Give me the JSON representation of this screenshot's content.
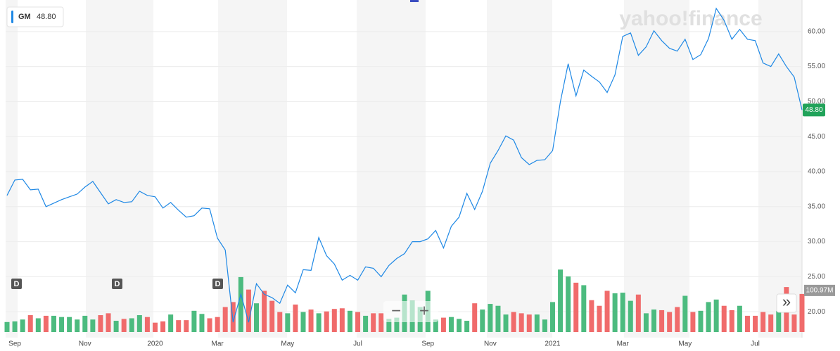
{
  "legend_value": "48.80",
  "watermark": "yahoo!finance",
  "dividends": [
    "D",
    "D",
    "D"
  ],
  "controls": [
    "−",
    "+",
    "»"
  ],
  "chart_data": {
    "type": "line",
    "categories": [
      null,
      "Sep",
      null,
      null,
      null,
      null,
      null,
      null,
      null,
      null,
      "Nov",
      null,
      null,
      null,
      null,
      null,
      null,
      null,
      null,
      "2020",
      null,
      null,
      null,
      null,
      null,
      null,
      null,
      "Mar",
      null,
      null,
      null,
      null,
      null,
      null,
      null,
      null,
      "May",
      null,
      null,
      null,
      null,
      null,
      null,
      null,
      null,
      "Jul",
      null,
      null,
      null,
      null,
      null,
      null,
      null,
      null,
      "Sep",
      null,
      null,
      null,
      null,
      null,
      null,
      null,
      "Nov",
      null,
      null,
      null,
      null,
      null,
      null,
      null,
      "2021",
      null,
      null,
      null,
      null,
      null,
      null,
      null,
      null,
      "Mar",
      null,
      null,
      null,
      null,
      null,
      null,
      null,
      "May",
      null,
      null,
      null,
      null,
      null,
      null,
      null,
      null,
      "Jul",
      null,
      null,
      null,
      null,
      null,
      null
    ],
    "series": [
      {
        "name": "GM",
        "color": "#1e88e5",
        "values": [
          36.6,
          38.8,
          38.9,
          37.4,
          37.5,
          35.0,
          35.5,
          36.0,
          36.4,
          36.8,
          37.8,
          38.6,
          37.0,
          35.4,
          36.0,
          35.6,
          35.7,
          37.2,
          36.6,
          36.4,
          34.8,
          35.6,
          34.5,
          33.5,
          33.7,
          34.8,
          34.7,
          30.5,
          28.8,
          18.5,
          22.5,
          18.5,
          24.0,
          22.5,
          22.0,
          21.2,
          23.8,
          22.7,
          26.0,
          25.9,
          30.6,
          28.0,
          26.8,
          24.5,
          25.2,
          24.5,
          26.4,
          26.2,
          25.0,
          26.6,
          27.6,
          28.3,
          30.0,
          30.0,
          30.4,
          31.6,
          29.1,
          32.2,
          33.5,
          36.9,
          34.6,
          37.2,
          41.2,
          43.0,
          45.1,
          44.5,
          42.0,
          41.0,
          41.6,
          41.7,
          43.0,
          50.0,
          55.4,
          50.8,
          54.5,
          53.6,
          52.8,
          51.3,
          53.8,
          59.3,
          59.8,
          56.6,
          57.8,
          60.1,
          58.7,
          57.6,
          57.2,
          58.9,
          56.0,
          56.7,
          59.0,
          63.3,
          61.6,
          58.9,
          60.3,
          58.9,
          58.7,
          55.5,
          55.0,
          56.8,
          55.0,
          53.5,
          48.8
        ]
      }
    ],
    "ylim": [
      16.3,
      64.5
    ],
    "yticks": [
      {
        "value": 20,
        "label": "20.00"
      },
      {
        "value": 25,
        "label": "25.00"
      },
      {
        "value": 30,
        "label": "30.00"
      },
      {
        "value": 35,
        "label": "35.00"
      },
      {
        "value": 40,
        "label": "40.00"
      },
      {
        "value": 45,
        "label": "45.00"
      },
      {
        "value": 50,
        "label": "50.00"
      },
      {
        "value": 55,
        "label": "55.00"
      },
      {
        "value": 60,
        "label": "60.00"
      }
    ],
    "grid": true,
    "price_tag_color": "#21a35a",
    "volume": {
      "values": [
        56,
        57,
        60,
        67,
        62,
        66,
        66,
        64,
        64,
        60,
        66,
        60,
        67,
        70,
        58,
        61,
        62,
        67,
        64,
        55,
        57,
        68,
        59,
        59,
        74,
        69,
        62,
        64,
        80,
        88,
        128,
        108,
        86,
        106,
        90,
        72,
        70,
        84,
        72,
        76,
        70,
        73,
        77,
        78,
        74,
        72,
        66,
        70,
        70,
        61,
        63,
        100,
        90,
        80,
        106,
        60,
        63,
        64,
        61,
        58,
        86,
        76,
        85,
        82,
        68,
        72,
        70,
        68,
        68,
        60,
        88,
        140,
        129,
        119,
        115,
        91,
        82,
        106,
        102,
        103,
        90,
        100,
        70,
        76,
        75,
        72,
        80,
        98,
        72,
        74,
        88,
        92,
        82,
        75,
        82,
        66,
        66,
        72,
        68,
        74,
        112,
        68,
        100.97
      ],
      "last_value_label": "100.97M",
      "ylim": [
        40,
        200
      ],
      "up_color": "#4cbb7f",
      "down_color": "#f06b6b"
    }
  }
}
